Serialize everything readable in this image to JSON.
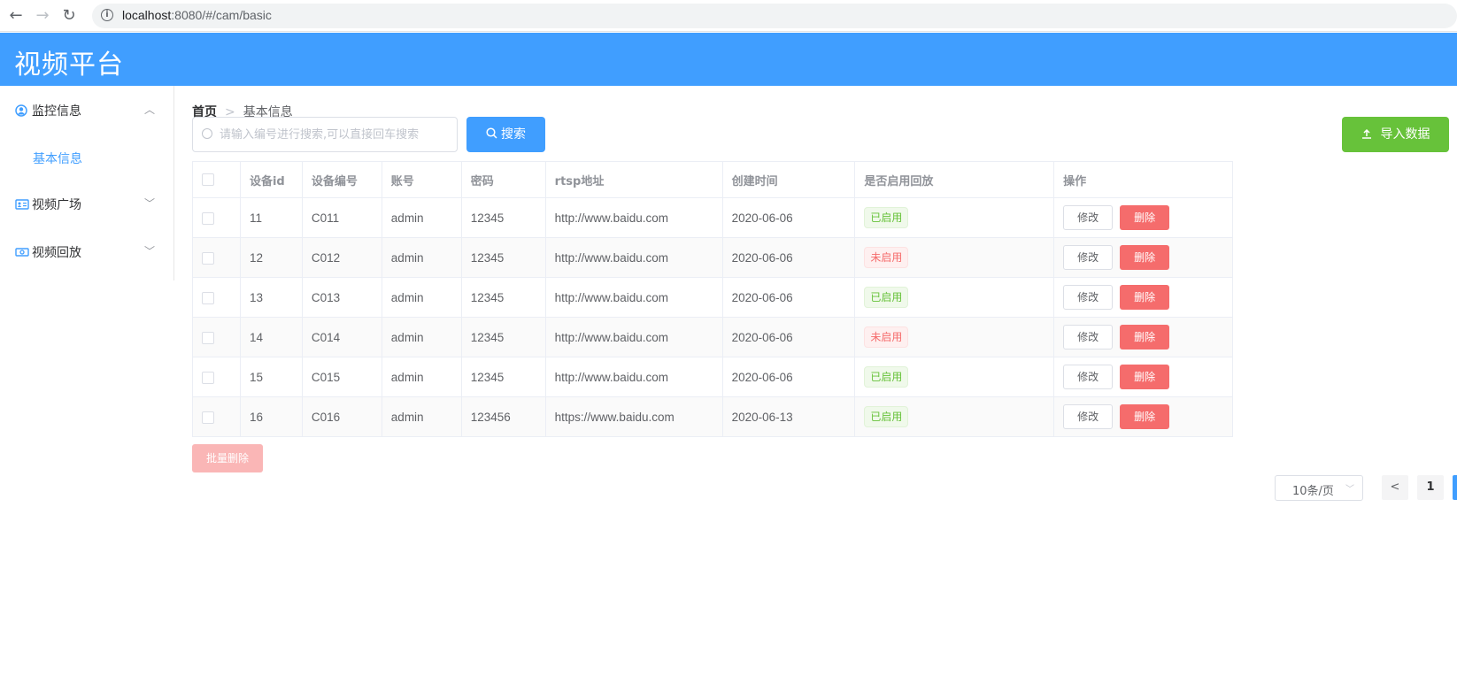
{
  "browser": {
    "url_host": "localhost",
    "url_rest": ":8080/#/cam/basic",
    "back": "←",
    "forward": "→",
    "reload": "↻"
  },
  "header": {
    "title": "视频平台"
  },
  "sidebar": {
    "menus": [
      {
        "label": "监控信息",
        "icon": "user-circle-icon",
        "arrow": "︿"
      },
      {
        "label": "视频广场",
        "icon": "id-card-icon",
        "arrow": "﹀"
      },
      {
        "label": "视频回放",
        "icon": "money-icon",
        "arrow": "﹀"
      }
    ],
    "active_sub": "基本信息"
  },
  "breadcrumb": {
    "home": "首页",
    "sep": ">",
    "current": "基本信息"
  },
  "search": {
    "placeholder": "请输入编号进行搜索,可以直接回车搜索",
    "button": "搜索"
  },
  "import_button": "导入数据",
  "table": {
    "headers": [
      "设备id",
      "设备编号",
      "账号",
      "密码",
      "rtsp地址",
      "创建时间",
      "是否启用回放",
      "操作"
    ],
    "rows": [
      {
        "id": "11",
        "code": "C011",
        "account": "admin",
        "password": "12345",
        "rtsp": "http://www.baidu.com",
        "created": "2020-06-06",
        "status": "已启用",
        "on": true
      },
      {
        "id": "12",
        "code": "C012",
        "account": "admin",
        "password": "12345",
        "rtsp": "http://www.baidu.com",
        "created": "2020-06-06",
        "status": "未启用",
        "on": false
      },
      {
        "id": "13",
        "code": "C013",
        "account": "admin",
        "password": "12345",
        "rtsp": "http://www.baidu.com",
        "created": "2020-06-06",
        "status": "已启用",
        "on": true
      },
      {
        "id": "14",
        "code": "C014",
        "account": "admin",
        "password": "12345",
        "rtsp": "http://www.baidu.com",
        "created": "2020-06-06",
        "status": "未启用",
        "on": false
      },
      {
        "id": "15",
        "code": "C015",
        "account": "admin",
        "password": "12345",
        "rtsp": "http://www.baidu.com",
        "created": "2020-06-06",
        "status": "已启用",
        "on": true
      },
      {
        "id": "16",
        "code": "C016",
        "account": "admin",
        "password": "123456",
        "rtsp": "https://www.baidu.com",
        "created": "2020-06-13",
        "status": "已启用",
        "on": true
      }
    ],
    "edit_label": "修改",
    "delete_label": "删除"
  },
  "batch_delete": "批量删除",
  "pagination": {
    "page_size": "10条/页",
    "current_page": "1",
    "prev": "<"
  },
  "colors": {
    "primary": "#409eff",
    "success": "#67c23a",
    "danger": "#f56c6c"
  }
}
